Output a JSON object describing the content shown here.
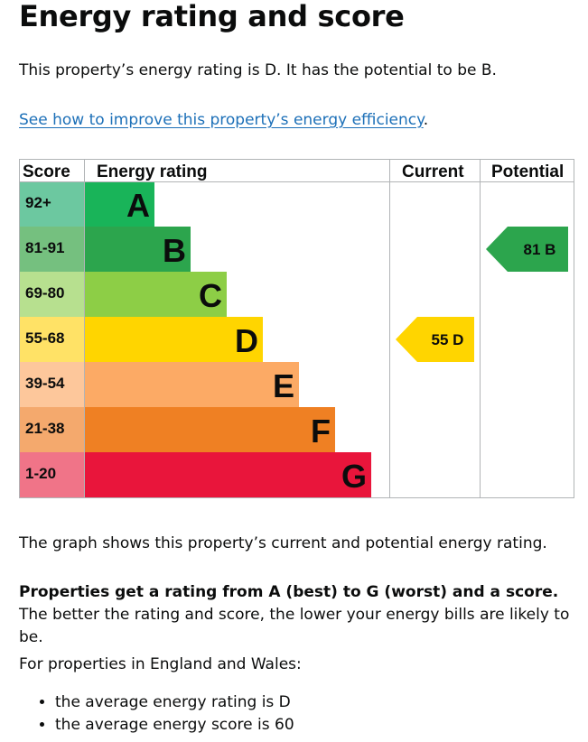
{
  "page": {
    "title": "Energy rating and score",
    "lead": "This property’s energy rating is D. It has the potential to be B.",
    "improve_link": "See how to improve this property’s energy efficiency",
    "improve_suffix": ".",
    "graph_note": "The graph shows this property’s current and potential energy rating.",
    "rating_bold": "Properties get a rating from A (best) to G (worst) and a score.",
    "rating_rest": " The better the rating and score, the lower your energy bills are likely to be.",
    "england_wales": "For properties in England and Wales:",
    "averages": [
      "the average energy rating is D",
      "the average energy score is 60"
    ]
  },
  "colors": {
    "A": "#19b459",
    "B": "#2ca54d",
    "C": "#8dce46",
    "D": "#ffd500",
    "E": "#fcaa65",
    "F": "#ef8023",
    "G": "#e9153b",
    "A_score": "#6cc8a0",
    "B_score": "#75c07f",
    "C_score": "#b7e08f",
    "D_score": "#ffe266",
    "E_score": "#fdc79b",
    "F_score": "#f4a96d",
    "G_score": "#f07488"
  },
  "chart_data": {
    "type": "table",
    "columns": [
      "Score",
      "Energy rating",
      "Current",
      "Potential"
    ],
    "bands": [
      {
        "letter": "A",
        "range": "92+"
      },
      {
        "letter": "B",
        "range": "81-91"
      },
      {
        "letter": "C",
        "range": "69-80"
      },
      {
        "letter": "D",
        "range": "55-68"
      },
      {
        "letter": "E",
        "range": "39-54"
      },
      {
        "letter": "F",
        "range": "21-38"
      },
      {
        "letter": "G",
        "range": "1-20"
      }
    ],
    "current": {
      "score": 55,
      "letter": "D"
    },
    "potential": {
      "score": 81,
      "letter": "B"
    }
  }
}
